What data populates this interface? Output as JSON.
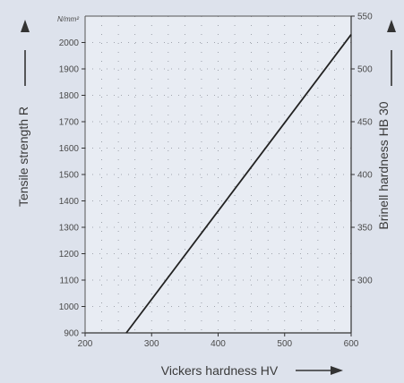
{
  "chart_data": {
    "type": "line",
    "xlabel": "Vickers hardness  HV",
    "ylabel_left": "Tensile strength  R",
    "ylabel_right": "Brinell hardness  HB 30",
    "y_unit": "N/mm²",
    "xlim": [
      200,
      600
    ],
    "ylim_left": [
      900,
      2100
    ],
    "ylim_right": [
      250,
      550
    ],
    "x_ticks": [
      "200",
      "300",
      "400",
      "500",
      "600"
    ],
    "y_left_ticks": [
      "900",
      "1000",
      "1100",
      "1200",
      "1300",
      "1400",
      "1500",
      "1600",
      "1700",
      "1800",
      "1900",
      "2000"
    ],
    "y_right_ticks": [
      "300",
      "350",
      "400",
      "450",
      "500",
      "550"
    ],
    "grid": true,
    "series": [
      {
        "x": [
          262,
          600
        ],
        "y": [
          900,
          2030
        ]
      }
    ],
    "colors": {
      "background": "#dde2ec",
      "plot_bg": "#e8ecf3",
      "line": "#222222",
      "grid": "#8a8f99"
    }
  }
}
